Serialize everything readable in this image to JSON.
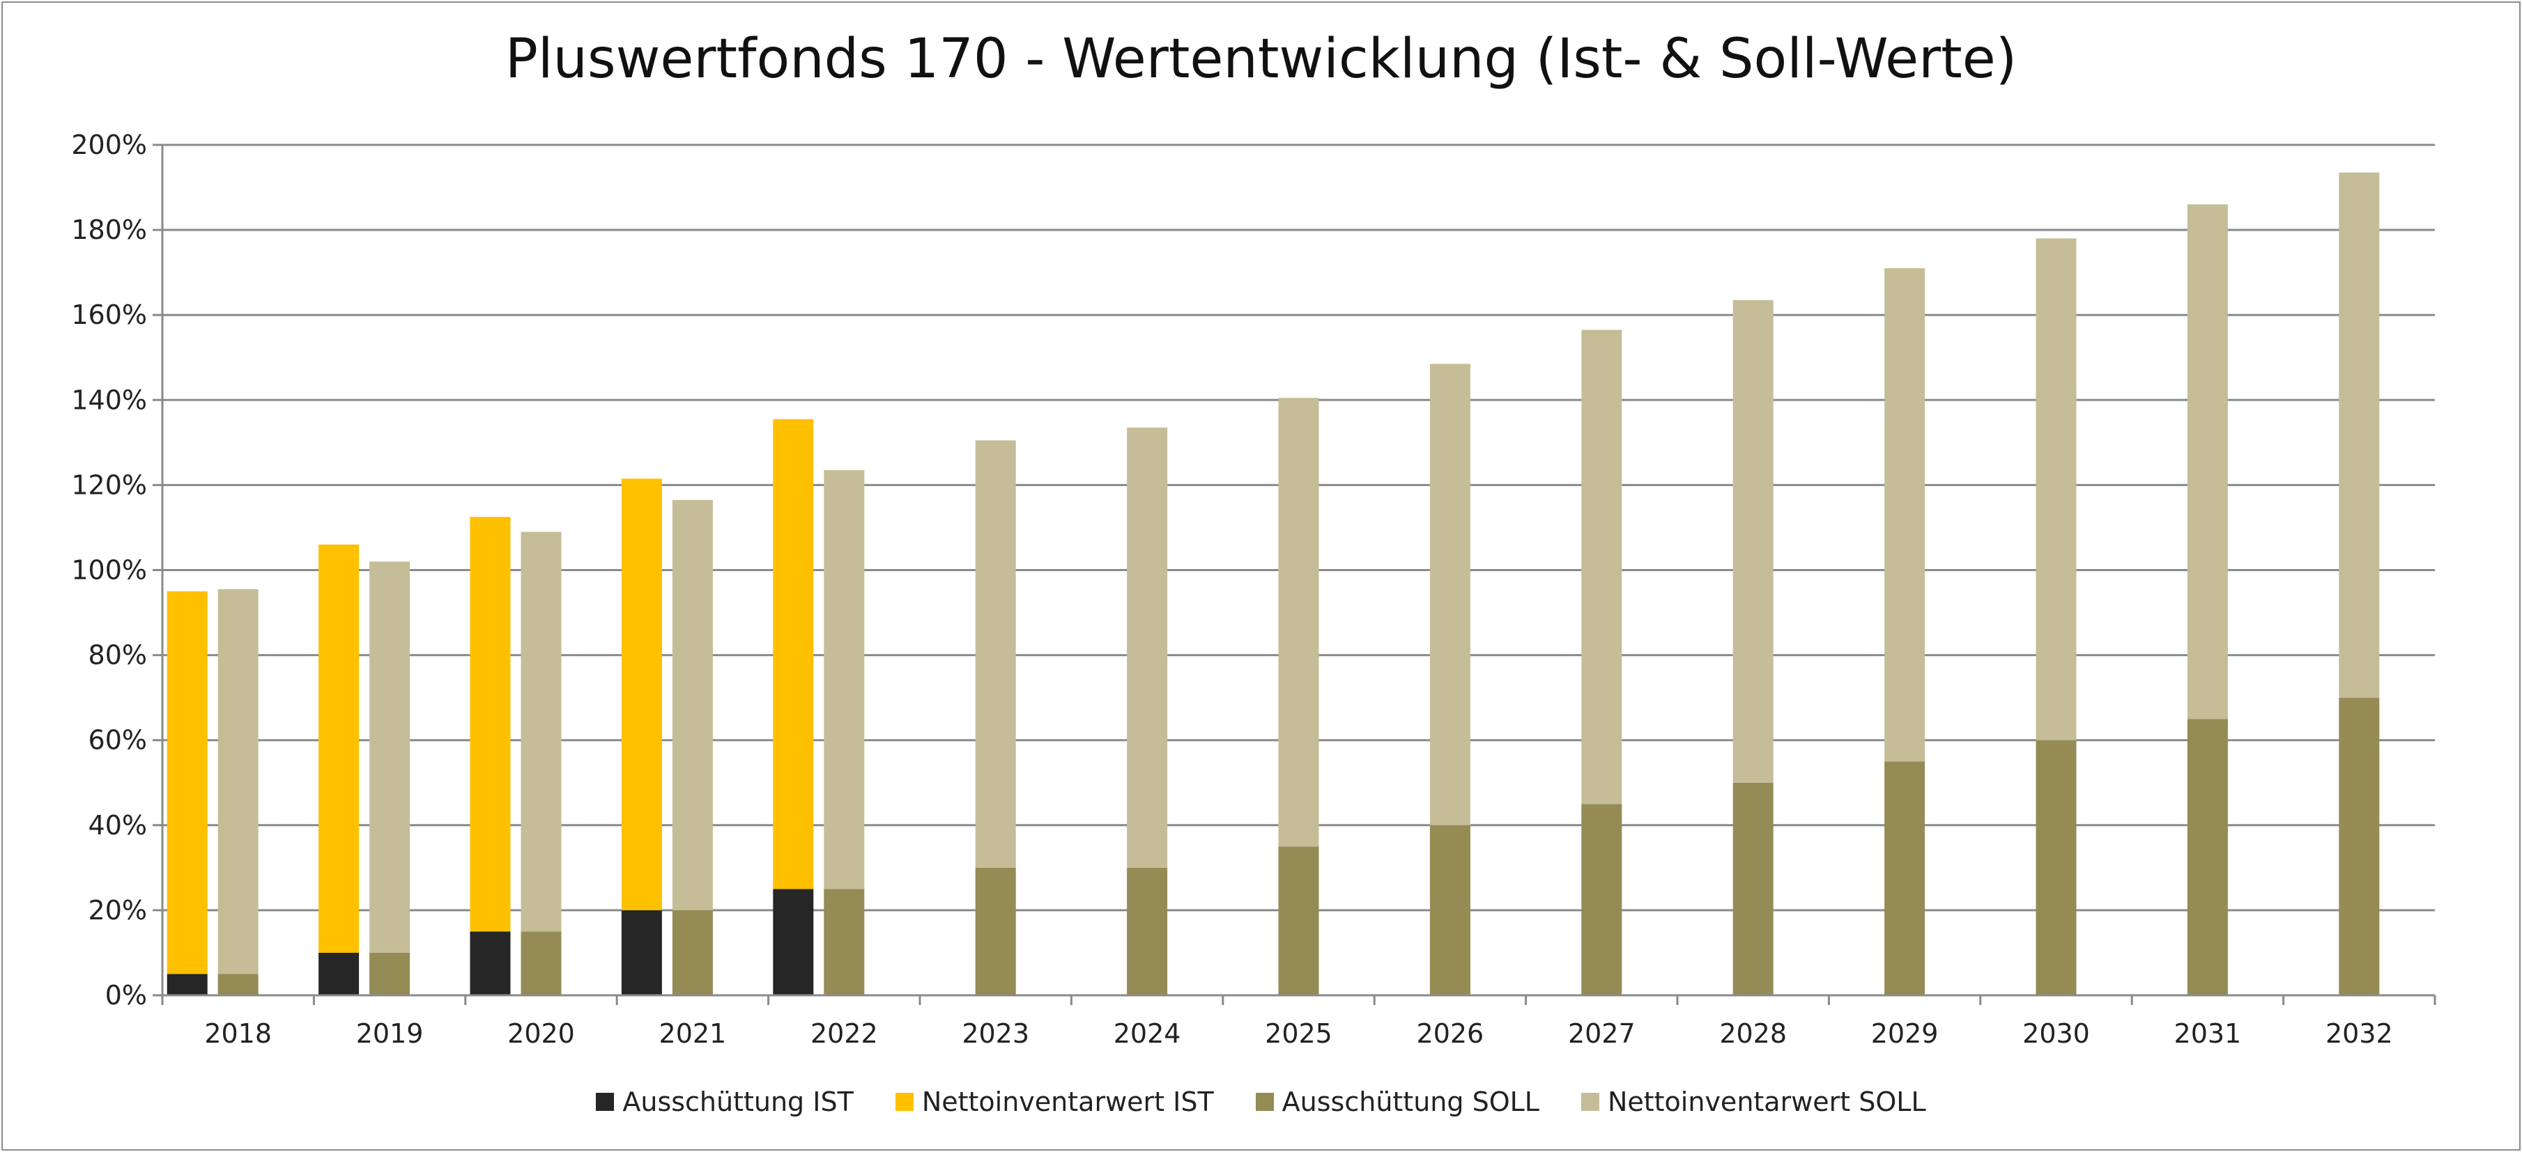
{
  "chart_data": {
    "type": "bar",
    "stacked": true,
    "title": "Pluswertfonds 170 - Wertentwicklung (Ist- & Soll-Werte)",
    "xlabel": "",
    "ylabel": "",
    "ylim": [
      0,
      200
    ],
    "yticks": [
      "0%",
      "20%",
      "40%",
      "60%",
      "80%",
      "100%",
      "120%",
      "140%",
      "160%",
      "180%",
      "200%"
    ],
    "grid": true,
    "legend_position": "bottom",
    "categories": [
      "2018",
      "2019",
      "2020",
      "2021",
      "2022",
      "2023",
      "2024",
      "2025",
      "2026",
      "2027",
      "2028",
      "2029",
      "2030",
      "2031",
      "2032"
    ],
    "series": [
      {
        "name": "Ausschüttung IST",
        "stack": "IST",
        "color": "#262626",
        "values": [
          5,
          10,
          15,
          20,
          25,
          null,
          null,
          null,
          null,
          null,
          null,
          null,
          null,
          null,
          null
        ]
      },
      {
        "name": "Nettoinventarwert IST",
        "stack": "IST",
        "color": "#ffc000",
        "values": [
          90,
          96,
          97.5,
          101.5,
          110.5,
          null,
          null,
          null,
          null,
          null,
          null,
          null,
          null,
          null,
          null
        ]
      },
      {
        "name": "Ausschüttung SOLL",
        "stack": "SOLL",
        "color": "#958b54",
        "values": [
          5,
          10,
          15,
          20,
          25,
          30,
          30,
          35,
          40,
          45,
          50,
          55,
          60,
          65,
          70
        ]
      },
      {
        "name": "Nettoinventarwert SOLL",
        "stack": "SOLL",
        "color": "#c5bd98",
        "values": [
          90.5,
          92,
          94,
          96.5,
          98.5,
          100.5,
          103.5,
          105.5,
          108.5,
          111.5,
          113.5,
          116,
          118,
          121,
          123.5
        ]
      }
    ]
  }
}
